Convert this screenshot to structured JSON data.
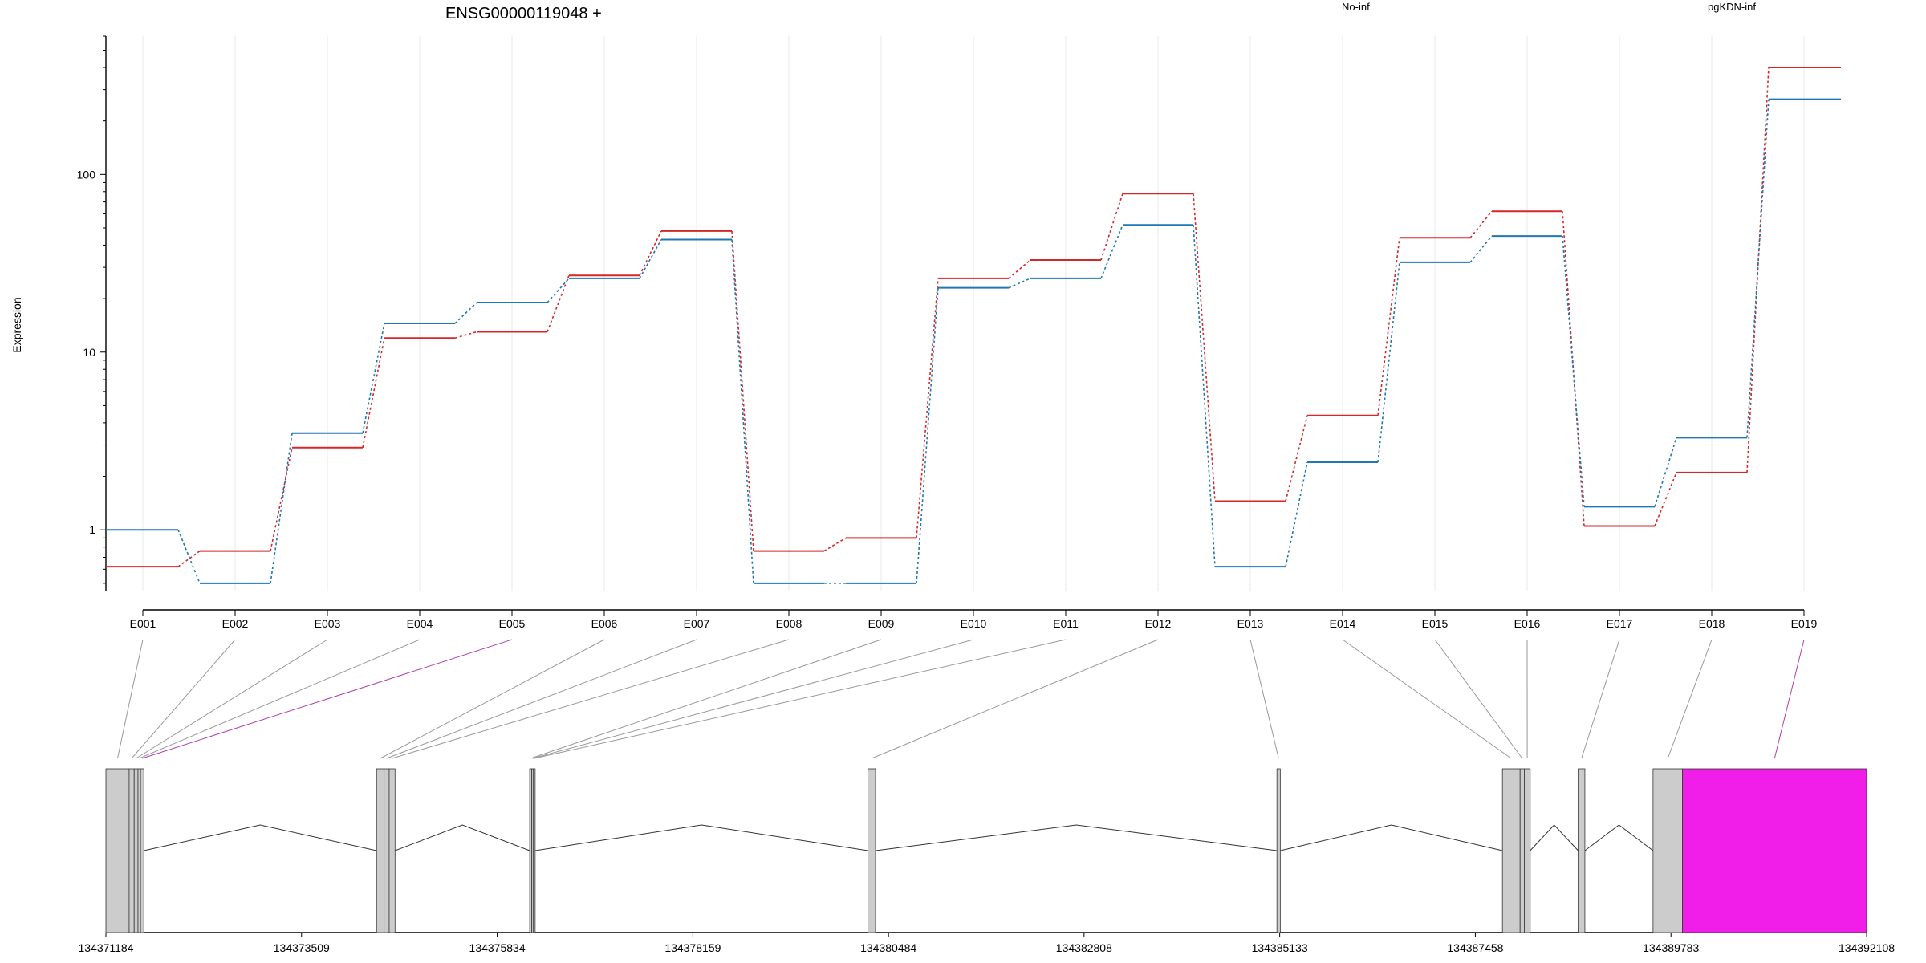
{
  "chart_data": {
    "type": "line",
    "title": "ENSG00000119048 +",
    "xlabel": "",
    "ylabel": "Expression",
    "y_scale": "log",
    "ylim": [
      0.45,
      600
    ],
    "y_ticks": [
      1,
      10,
      100
    ],
    "y_tick_labels": [
      "1",
      "10",
      "100"
    ],
    "grid": "vertical",
    "legend_position": "top",
    "categories": [
      "E001",
      "E002",
      "E003",
      "E004",
      "E005",
      "E006",
      "E007",
      "E008",
      "E009",
      "E010",
      "E011",
      "E012",
      "E013",
      "E014",
      "E015",
      "E016",
      "E017",
      "E018",
      "E019"
    ],
    "series": [
      {
        "name": "No-inf",
        "color": "#d62728",
        "values": [
          0.62,
          0.76,
          2.9,
          12,
          13,
          27,
          48,
          0.76,
          0.9,
          26,
          33,
          78,
          1.45,
          4.4,
          44,
          62,
          1.05,
          2.1,
          400
        ]
      },
      {
        "name": "pgKDN-inf",
        "color": "#1f77b4",
        "values": [
          1.0,
          0.5,
          3.5,
          14.5,
          19,
          26,
          43,
          0.5,
          0.5,
          23,
          26,
          52,
          0.62,
          2.4,
          32,
          45,
          1.35,
          3.3,
          265
        ]
      }
    ]
  },
  "gene_model": {
    "coord_ticks": [
      "134371184",
      "134373509",
      "134375834",
      "134378159",
      "134380484",
      "134382808",
      "134385133",
      "134387458",
      "134389783",
      "134392108"
    ],
    "coord_range": [
      134371184,
      134392108
    ],
    "highlight_color": "#f01ee8",
    "exon_color": "#cccccc",
    "exons": [
      {
        "id": "E001",
        "start": 134371184,
        "end": 134371460
      },
      {
        "id": "E002",
        "start": 134371460,
        "end": 134371520
      },
      {
        "id": "E003",
        "start": 134371520,
        "end": 134371565
      },
      {
        "id": "E004",
        "start": 134371565,
        "end": 134371595
      },
      {
        "id": "E005",
        "start": 134371595,
        "end": 134371635,
        "highlight": true
      },
      {
        "id": "E006",
        "start": 134374400,
        "end": 134374490
      },
      {
        "id": "E007",
        "start": 134374490,
        "end": 134374550
      },
      {
        "id": "E008",
        "start": 134374550,
        "end": 134374620
      },
      {
        "id": "E009",
        "start": 134376220,
        "end": 134376245
      },
      {
        "id": "E010",
        "start": 134376245,
        "end": 134376265
      },
      {
        "id": "E011",
        "start": 134376265,
        "end": 134376285
      },
      {
        "id": "E012",
        "start": 134380240,
        "end": 134380330
      },
      {
        "id": "E013",
        "start": 134385100,
        "end": 134385140
      },
      {
        "id": "E014",
        "start": 134387780,
        "end": 134387990
      },
      {
        "id": "E015",
        "start": 134387990,
        "end": 134388040
      },
      {
        "id": "E016",
        "start": 134388040,
        "end": 134388110
      },
      {
        "id": "E017",
        "start": 134388680,
        "end": 134388760
      },
      {
        "id": "E018",
        "start": 134389570,
        "end": 134389920
      },
      {
        "id": "E019",
        "start": 134389920,
        "end": 134392108,
        "highlight": true
      }
    ]
  }
}
